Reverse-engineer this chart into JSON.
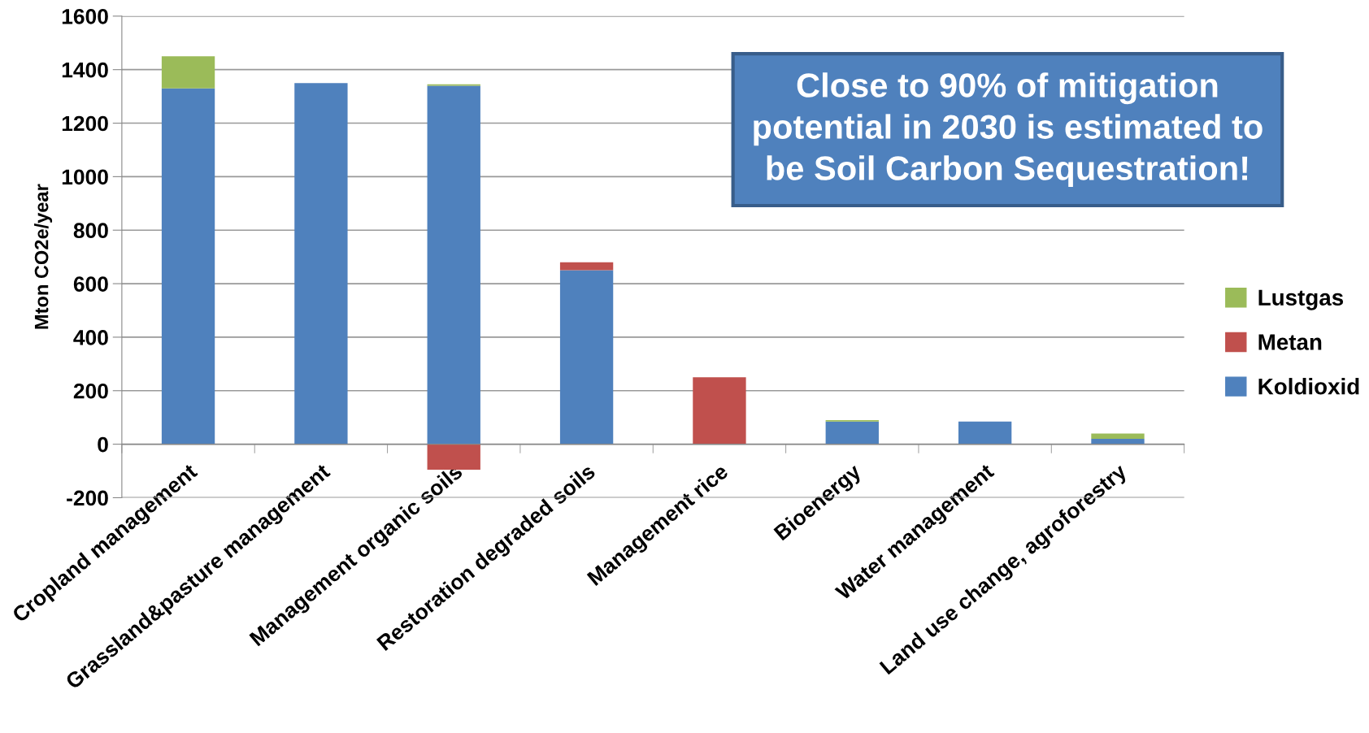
{
  "chart_data": {
    "type": "bar",
    "stacked": true,
    "ylabel": "Mton CO2e/year",
    "categories": [
      "Cropland management",
      "Grassland&pasture management",
      "Management organic soils",
      "Restoration degraded soils",
      "Management rice",
      "Bioenergy",
      "Water management",
      "Land use change, agroforestry"
    ],
    "series": [
      {
        "name": "Koldioxid",
        "color": "#4f81bd",
        "values": [
          1330,
          1350,
          1340,
          650,
          0,
          85,
          85,
          20
        ]
      },
      {
        "name": "Metan",
        "color": "#c0504d",
        "values": [
          0,
          0,
          -95,
          30,
          250,
          0,
          0,
          0
        ]
      },
      {
        "name": "Lustgas",
        "color": "#9bbb59",
        "values": [
          120,
          0,
          5,
          0,
          0,
          5,
          0,
          20
        ]
      }
    ],
    "ylim": [
      -200,
      1600
    ],
    "yticks": [
      -200,
      0,
      200,
      400,
      600,
      800,
      1000,
      1200,
      1400,
      1600
    ],
    "grid": "y",
    "legend": "right",
    "annotations": [
      "Close to 90% of mitigation\npotential in 2030 is estimated to\nbe Soil Carbon Sequestration!"
    ]
  }
}
